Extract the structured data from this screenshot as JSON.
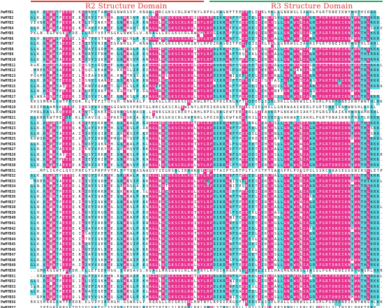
{
  "header": {
    "r2_label": "R2 Structure Domain",
    "r3_label": "R3 Structure Domain",
    "r2_color": "#e23a2c",
    "r3_color": "#27a567"
  },
  "colors": {
    "identical": "#e8348f",
    "similar": "#5ed7e0",
    "weak": "#f2c4d9",
    "text_on_identical": "#ffffff",
    "text_default": "#1a1a1a"
  },
  "sequences": [
    {
      "name": "PmMYB1",
      "seq": "GLK.RGPWTPEEDE.KLINYVTAHGRGNWRSVP.KNAGLLRCGKSCRLRWTNYLRPDLKRGNFTEEEEELIIRLHKLLGNRWSLIAGRLPGRTDNEIKNYWNTHIRRK."
    },
    {
      "name": "PmMYB2",
      "seq": "GLK.KGPWTPEEDE.KLIRYITKYGH.GSWRSVP.KQAGLQRCGKSCRLRWINYLRPDIKRGNFTPEEEELIVKLHSVLGNRWSLIAGRLPGRTDNEIKNYWNTHLKRK."
    },
    {
      "name": "PmMYB3",
      "seq": "VEVNKGPWTPEEDA.KLLEHINKYGE.GNWRSLP.KNAGLLRCGKSCRLRWINYLRPDIKRGNFTEEEDEIIIRLHSLLGNKWSLIAGRLPGRTDNEIKNYWNSHLRKK."
    },
    {
      "name": "PmMYB4",
      "seq": "GLR.KGAWTAEEDQ.KLRAYIEKHGE.GNWHAVS.KNAGLNRCGKSCRLRWLNYLRPDIRRGEFSEEEDEIIIRLHRLLGNRWSLIAGRLPGRTDNEIKNYWNTHLSKKV"
    },
    {
      "name": "PmMYB5",
      "seq": "PKLN.RGPWSKEEDE.ILRRYVEEHGGKGNWKSLV.RNAGLLRCGKSCRLRWNHLRPGIKRGPFSPEEEEQIIRLHRLLGNRWSQIASHLPGRTDNEIKNYWNTHLKKR."
    },
    {
      "name": "PmMYB6",
      "seq": "GLH.KGPWSPEEDE.LLKTYVQTNGR.GKWCHLP.KQAGLKRCGKSCRLRWLNYLRPDIKRGNFTLEEDETIIKLHALLGNRWSQIAARLPGRTDNEIKNHWNTHLKKR."
    },
    {
      "name": "PmMYB7",
      "seq": "GLK.RGPWTSEEDE.ILIEYVRIHGEGKWRSLP.RNAGLKRCGKSCRLRWINYLRPDIKRGNITPEEDEIIIRLHHLLGNRWSLIAGRIPGRTDNEIKNYWNTHLSKRL"
    },
    {
      "name": "PmMYB8",
      "seq": "GLK.KGPWTAEEDQ.KLVAYIQRHGH.GNWRALP.KQAGLLRCGKSCRLRWTNYLRPDIKRGKFSLQEEQTIIQLHALLGNRWSAIATHLPGRTDNEIKNFWNTHLKKK."
    },
    {
      "name": "PmMYB9",
      "seq": "GLK.RGPWTPEEDE.KLVRYITRHGH.GSWRALP.KQAGLLRCGKSCRLRWTNYLRPDLKRGAFTEQEEKLIVQLHALLGNRWSLIAGRLPGRTDNEIKNYWNTHIRRK."
    },
    {
      "name": "PmMYB10",
      "seq": "GLK.KGPWTAEEDK.RLIDYIQKHGP.GNWRSVP.KNAGLLRCGKSCRLRWTNYLRPDIKRGNFTPEEEELIIRLHSLLGNKWSLIAGRLPGRTDNEIKNYWNTHLRRK."
    },
    {
      "name": "PmMYB11",
      "seq": "RGK.KGPWTAEEDQ.ILSSYIRQHGE.GNWRSLP.KKAGLLRCGKSCRLRWLNYLRPDVRRGNFTSEEEETIIQLHALLGNRWSAIASRLPGRTDNEIKNYWNTHLRKRL"
    },
    {
      "name": "PmMYB12",
      "seq": ".MREKGRWSAEEDK.LLQQLVEAHGD.KKWSLIP.RIAGLRRCGKSCRLRWLNYLRPDLKRGSFSDEEEETIVELHAKLGNKWARIASHLPGRTDNEIKNYWNTRLKRK."
    },
    {
      "name": "PmMYB13",
      "seq": "PQGPRGPWTAEEDE.LLSEAVEKHGA.KNWTHIS.KQAGLKRSGKSCRLRWLNYLRPDIKRGNISEDEEELIIRLHKLLGNRWSLIAGRLPGRTDNEIKNYWNSHLKRK."
    },
    {
      "name": "PmMYB14",
      "seq": "GLR.RGRWTEEEDQ.ILSNYIQANGE.GSWRSLP.KNAGLLRCGKSCRLRWLNYLRPNIKHGDFTEEEDRIICSLYASIGSRWSIIAAQLPGRTDNDIKNYWNTKLKKK."
    },
    {
      "name": "PmMYB15",
      "seq": "GLN.RGPWTAQEDE.ILRNYVQAHGT.GKWLSLP.KRAGIPRCGKSCRLRWLNYLRPDIKHGGFTPEEDEIILSLHQQLGNRWSAIAARLPGRTDNEIKNYWNTRLKKRA"
    },
    {
      "name": "PmMYB16",
      "seq": "GLN.RGSWTEEEDR.KLLEFIRKFGH.RGWTKTP.DGAGLRRCGKSCRLRWRNYLRPEIKRGKFTREEDELIIKLHNEYGNKWSIIAGQLPGRTDNEIKNHWNSKL..."
    },
    {
      "name": "PmMYB17",
      "seq": "GSWKAGSWTEEEDK.ILIDYVTLHGE.GNWKSLP.KKAGLKRCGKSCRLRWLNYLRPDLKKGSFTPEEDEIIIHLHQLLGNRWSLIARRLPGRTDNEIKNYWNTHLKKR."
    },
    {
      "name": "PmMYB18",
      "seq": "RKSSMRRGSWTPEEDR.KLTEFITQYGH.RNWRALP.KQAGLLRCGKSCRLRWLNYLRPDIKRGNFTEDEEDLIIRLHKLLGNKWSLIAGRLPGRTDNEIKNYWNTHLRKK."
    },
    {
      "name": "PmMYB19",
      "seq": "RRIPRAAMSKEEDE.ILRSYVRQHGGGSWRSVPRRTGLNRCGKSCRLRWLNYLRPDIKRGNISEEEERLIIELHALLGNRWAAIARRLPGRTDNEIKNHWNSHLKKRL"
    },
    {
      "name": "PmMYB20",
      "seq": "PHRLRASLRQEEDE.KLVTLIKEEGGQNNWSKVAQR.LGNRSGKQCRERYLNHLRPDLRRGEWTEEEDRLLIEAVKRFGNKWSEIAKYIPGRSDNAIKNHWNSAMRRRL"
    },
    {
      "name": "PmMYB21",
      "seq": "GLKRRRWTPEEDE.KLIRAVQQ.LGPKEKWSKIA.KHLPGRSGKQCRLRWFNHLSPDIKKGEWTAEEDRILIEKVRELGHKWATIAKHLPGRTDNAIKNHFNSTLRRKR"
    },
    {
      "name": "PmMYB22",
      "seq": "GLK.RGPWTPEEDS.KLIEYIKKHGH.GSWRALP.RAAGLQRCGKSCRLRWTNYLRPDIKRGNFSDEEERLIIALHSLLGNRWSLIAGRLPGRTDNEIKNYWNTHLKKK."
    },
    {
      "name": "PmMYB23",
      "seq": "GLK.KGPWTPEEDQ.KLLAYIEEHGH.GSWRSLP.AKAGLQRCGKSCRLRWLNYLRPDIKRGNFTPEEEDLIIKLHSLLGNRWSLIAGRLPGRTDNEIKNYWNTHLSKK."
    },
    {
      "name": "PmMYB24",
      "seq": "GLN.RGAWTAEEDA.ILIDYVQIHGE.GKWRSIP.KEAGLKRCGKSCRLRWLNYLRPDIKRGNFTEEEDQLIIRLHNLLGNRWSLIAGRLPGRTDNEIKNYWNTHLSRK."
    },
    {
      "name": "PmMYB25",
      "seq": "RDRSKGPWTPEEDE.VLLEYIRRHGPHGKWTQVP.KQAGLLRCGKSCRLRWLNYLRPDIKHGGFTPEEDRIIVELHARMGNRWSQIAARLPGRTDNEIKNHWNTHLKKRL"
    },
    {
      "name": "PmMYB26",
      "seq": "GLK.RGPWTPEEDQ.LLVDYIQKNGH.GSWRALP.KLAGLLRCGKSCRLRWTNYLRPDLKRGLFSQEEEETIIHLHSLLGNKWSAIAAHLPGRTDNEIKNYWNTHLRKK."
    },
    {
      "name": "PmMYB27",
      "seq": "GLR.RGAWTAEEDE.ILKKYVEKYGE.GKWHQVP.RKAGLRRCGKSCRLRWLNYLRPDIKRGDFTPEEEETIIRLHALLGNKWSAIAGRLPGRTDNEIKNYWNTHLKRK."
    },
    {
      "name": "PmMYB28",
      "seq": "GLN.KGAWTAIEDK.ILLSYIRKHGE.GNWRSLP.KKAGLMRCGKSCRLRWLNYLRPDIKRGNFSDEEDDIIIKLHSLLGNRWSLIAGRLPGRTDNEIKNYWNTHLRKKR"
    },
    {
      "name": "PmMYB29",
      "seq": "GLN.KGPWTPEEDQ.KLIEYIRIHGP.GNWHSLP.KAAGLKRCGKSCRLRWMNYLRPDIRRGNFTAEEEEVIIKLHSLLGNKWSLIAARLPGRTDNEIKNYWNSHLRKK."
    },
    {
      "name": "PmMYB30",
      "seq": "GLR.RGPWTAEEDD.KLVRYIRTHGE.GSWRSVP.KEAGLLRCGKSCRLRWLNYLRPDIRRGSFTDEEDETIIRLHKLLGNRWSLIAGRLPGRTDNEIKNYWNTHLRRK."
    },
    {
      "name": "PmMYB31",
      "seq": "...MFLIGPCLQVCPHEGTSPRPPVTPLTPTQVASNAQVYIEGRSNLIRHARQSLIPTTAIPTLRTPLTLYSTPTSAISPPLPVLSPSLSSKCSAASEGGSNIRSLLETPLEA"
    },
    {
      "name": "PmMYB32",
      "seq": "GLK.RGPWTPEEDQ.KLVQYIRKHGH.GNWRALP.KQAGLLRCGKSCRLRWTNYLRPDIKRGNFTEEEEDLIIRLHALLGNRWSLIAGRLPGRTDNEIKNYWNTHLKRR."
    },
    {
      "name": "PmMYB33",
      "seq": ".MREKGRWSAEEDK.ILISYVQRHGE.GNWRSIP.RKAGLRRCGKSCRLRWLNYLKPDIKRGNITSDEEEIIIKLHSLLGNKWSQIAGRLPGRTDNEIKNHWNTHIKKKL"
    },
    {
      "name": "PmMYB34",
      "seq": "GLN.RGPWTAEEDD.LLINYISIHGE.GRWNSLA.RSAGLKRTGKSCRLRWLNYLRPDIKRGNITPQEEETIIQLHSLLGNRWSAIAARLPGRTDNEIKNYWNTRLKRR."
    },
    {
      "name": "PmMYB35",
      "seq": "GLK.KGPWTPEEDS.RLIDYVRRHGH.GKWRALP.SLAGLLRCGKSCRLRWLNYLRPDLKRGSFTPEEDEIIIHLHSLLGNRWSLIAGRLPGRTDNEIKNYWNTHLRRK."
    },
    {
      "name": "PmMYB36",
      "seq": "GLR.RGSWTAEEDQ.KLIAYIQAHGE.GSWRALP.RNAGLMRCGKSCRLRWINYLRPDLKRGNFTNEEDELIIKLHALLGNRWSLIASRLPGRTDNEIKNYWNTHLRKK."
    },
    {
      "name": "PmMYB37",
      "seq": "GLK.KGPWTPEEDE.ILVSYIQKHGE.GNWRAVP.KKAGLERCGKSCRLRWINYLRPDIKRGNFTPEEEETIIRLHSLLGNKWSAIAGRLPGRTDNEIKNYWNTHLKKR."
    },
    {
      "name": "PmMYB38",
      "seq": "GLN.KGAWTAEEDQ.KLIEYIRKHGG.GSWRSLP.KSAGLLRCGKSCRLRWLNYLRPDIKRGNFTEEEEETIIRLHALLGNRWSLIAGRLPGRTDNEIKNYWNTHLKKRL"
    },
    {
      "name": "PmMYB39",
      "seq": "GLH.RGPWTPEEDQ.LLVSYIRQHGH.GSWRSLP.KQAGLQRCGKSCRLRWTNYLRPDIKRGSFSEEEERLIVDLHAQLGNRWSAIAAHLPGRTDNEIKNYWNTHLKKK."
    },
    {
      "name": "PmMYB40",
      "seq": "GLR.RGPWTAEEDH.KLINYVRKHGQ.GSWRAVP.KQAGLKRCGKSCRLRWLNYLRPDIKRGNITEEEDDLIIRLHNLLGNRWSLIAGRLPGRTDNEIKNYWNSHLRKK."
    },
    {
      "name": "PmMYB41",
      "seq": "GLK.KGPWTAEEDQ.ILVEYIRKHGP.GNWRSLP.KNAGLLRCGKSCRLRWINYLRPDLKRGNFSTEEDETIIKLHGLLGNRWSLIAGRLPGRTDNEIKNYWNTHLRRR."
    },
    {
      "name": "PmMYB42",
      "seq": "GLN.RGPWTPEEDE.KLIAYVKEHGE.GNWRSLP.KNAGLLRCGKSCRLRWLNYLRPDIKRGNFTPEEEDLIIQLHSLLGNKWSLIASRLPGRTDNEIKNHWNTHLRKK."
    },
    {
      "name": "PmMYB43",
      "seq": "GLR.KGAWTPEEDQ.ILSAYIKEHGE.GNWRALP.KQAGLLRCGKSCRLRWTNYLRPDIKRGNFSAEEEDLIIKLHSLLGNRWSLIAGRLPGRTDNEIKNYWNTHLRKK."
    },
    {
      "name": "PmMYB44",
      "seq": "GLN.RGPWTPEEDK.ILTDYIQKHGE.GSWRSLP.KHAGLLRCGKSCRLRWINYLRPDIKRGDFTEEEEQLIVNLHALLGNRWSLIAGRLPGRTDNEIKNYWNTHLRKR."
    },
    {
      "name": "PmMYB45",
      "seq": "GLK.KGPWTAEEDQ.RLIRYIQEHGE.GNWRSIP.KKAGLLRCGKSCRLRWLNYLRPDIKRGNFTEEEDEIIIKLHSLLGNRWSLIAGRLPGRTDNEIKNYWNTHLKRK."
    },
    {
      "name": "PmMYB46",
      "seq": "GLN.RGAWTAEEDQ.LLVEYIRLHGE.GSWRALP.KKAGLLRCGKSCRLRWLNYLRPDIKRGNFTEEEEKLIVQLHSLLGNRWSLIAGRLPGRTDNEIKNYWNTHLKRR."
    },
    {
      "name": "PmMYB47",
      "seq": "GLK.KGPWTPEEDE.KLIAYIQRHGH.GSWRSVP.KQAGLMRCGKSCRLRWLNYLRPDIKRGNFTPEEDETIIRLHSLLGNKWSLIAGRLPGRTDNEIKNYWNTHLKKK."
    },
    {
      "name": "PmMYB48",
      "seq": "GLR.RGPWTLEEDE.KLVTYISKHGE.GSWRAIP.KKAGLKRCGKSCRLRWINYLRPDLKRGSFSAEEEELIIQLHALLGNRWSLIAGRLPGRTDNEIKNHWNTHLRRK."
    },
    {
      "name": "PmMYB49",
      "seq": "GLK.KGPWTSEEDH.ILINYVRRHGE.GNWRSLP.KQAGLLRCGKSCRLRWLNYLRPDIKRGNFTEEEDELIIRLHNLLGNRWSLIAGRLPGRTDNEIKNYWNTHLRKK."
    },
    {
      "name": "PmMYB50",
      "seq": "..SMRRGSWTPEEDR.KLLEFIEKHGG.QNWSAVS.KQAGLMRSGKSCRLRWTNYLRPDIKRGNFSDEEDRLIIELHAQMGNRWSLIASQLPGRTDNEIKNYWNSHLRKR."
    },
    {
      "name": "PmMYB51",
      "seq": "..RRKGPWTPEEDQ.ILLEYIKKHGN.KNWRAIP.KQAGLQRCGKSCRLRWTNYLRPDLKRGNFSPEEEDLIIKLHALLGNRWSLIASRLPGRTDNEIKNYWNTHLRKRL"
    },
    {
      "name": "PmMYB52",
      "seq": "GLQ.RGAWTPEEDQ.ILLSYIQKHGA.GSWRAIP.KHAGLLRCGKSCRLRWLNYLRPDIKRGNITEEEEELIIRLHALLGNRWSLIAGRLPGRTDNEIKNYWNTHLRKK."
    },
    {
      "name": "PmMYB53",
      "seq": "SLN.KGPWTPEEDK.ILVEFINKHGE.GSWRSLP.KQAGLLRCGKSCRLRWLNYLRPDLKRGNFSEEEEQLIIDLHAVLGNRWSAIAGRLPGRTDNEIKNYWNSHLRRK."
    },
    {
      "name": "PmMYB54",
      "seq": "GLR.KGPWTPEEDQ.RLVAYIQEHGE.GNWRSLP.KLAGLMRCGKSCRLRWLNYLRPDIKRGNFSAEEEELIIRLHSLLGNKWSLIAGRLPGRTDNEIKNYWNTHLRKK."
    },
    {
      "name": "PmMYB55",
      "seq": "..RPKGPWTPEEDQ.LLVEYVQKHGQ.GNWRSLP.KHAGLKRCGKSCRLRWLNYLRPDIKRGNITSEEEETIIHLHSLLGNRWSLIAGRLPGRTDNEIKNHWNTHLRKR."
    },
    {
      "name": "PmMYB56",
      "seq": "RKSSMRRGSWTPEEDR.KLVDYIRKHGH.GSWRSLP.KQAGLLRCGKSCRLRWTNYLRPDIKRGSFTEEEDRLIIELHALLGNRWSLIASHLPGRTDNEIKNYWNSHLKKR."
    },
    {
      "name": "PmMYB57",
      "seq": "...SPEGRKRPVRTDSSQLRLEVCSSPNSGEQHKLRPPTSHIRLSLRPHHLRKLHHPLSTHHLPHLLLHSLSPLLLKRSNSNLLLHLPLRPSSLSLTHSPLHHKTPRP"
    }
  ]
}
